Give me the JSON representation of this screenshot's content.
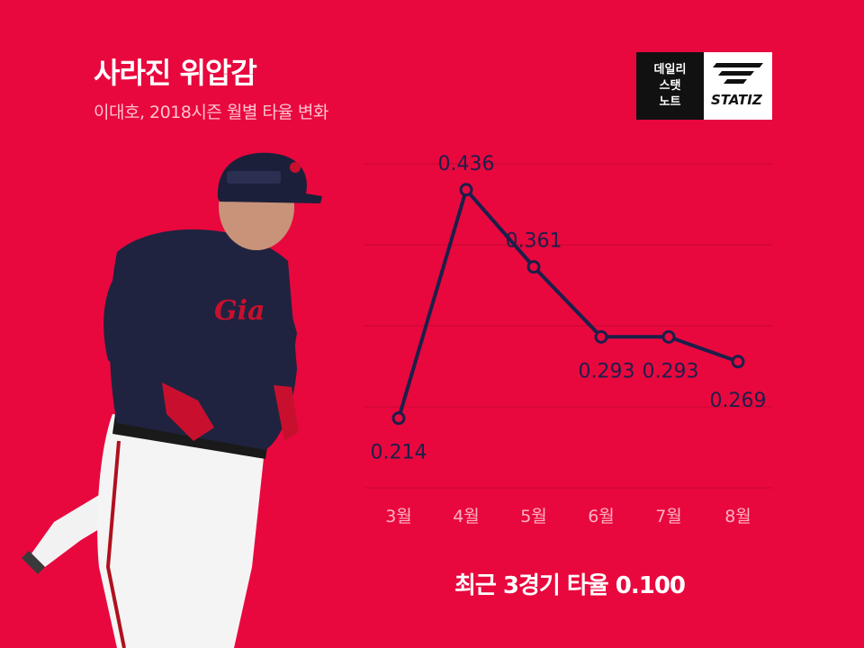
{
  "header": {
    "title": "사라진 위압감",
    "subtitle": "이대호, 2018시즌 월별 타율 변화"
  },
  "logo": {
    "line1": "데일리",
    "line2": "스탯",
    "line3": "노트",
    "brand": "STATIZ"
  },
  "footer": {
    "recent_text": "최근 3경기 타율 0.100"
  },
  "colors": {
    "background": "#e8083e",
    "line": "#1c1f4a",
    "grid": "#c8062f"
  },
  "chart_data": {
    "type": "line",
    "categories": [
      "3월",
      "4월",
      "5월",
      "6월",
      "7월",
      "8월"
    ],
    "values": [
      0.214,
      0.436,
      0.361,
      0.293,
      0.293,
      0.269
    ],
    "labels": [
      "0.214",
      "0.436",
      "0.361",
      "0.293",
      "0.293",
      "0.269"
    ],
    "ylim": [
      0.17,
      0.49
    ],
    "grid": true
  }
}
